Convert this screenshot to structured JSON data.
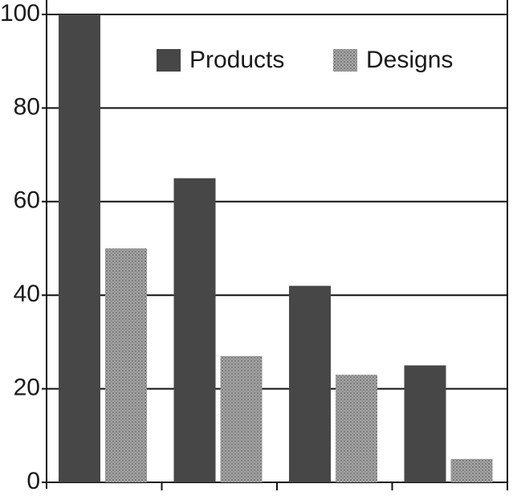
{
  "chart_data": {
    "type": "bar",
    "categories": [
      null,
      null,
      null,
      null
    ],
    "series": [
      {
        "name": "Products",
        "color": "#474747",
        "values": [
          100,
          65,
          42,
          25
        ]
      },
      {
        "name": "Designs",
        "color": "#9a9a9a",
        "values": [
          50,
          27,
          23,
          5
        ]
      }
    ],
    "ylim": [
      0,
      100
    ],
    "yticks": [
      0,
      20,
      40,
      60,
      80,
      100
    ],
    "grid": true,
    "legend": "upper right"
  }
}
